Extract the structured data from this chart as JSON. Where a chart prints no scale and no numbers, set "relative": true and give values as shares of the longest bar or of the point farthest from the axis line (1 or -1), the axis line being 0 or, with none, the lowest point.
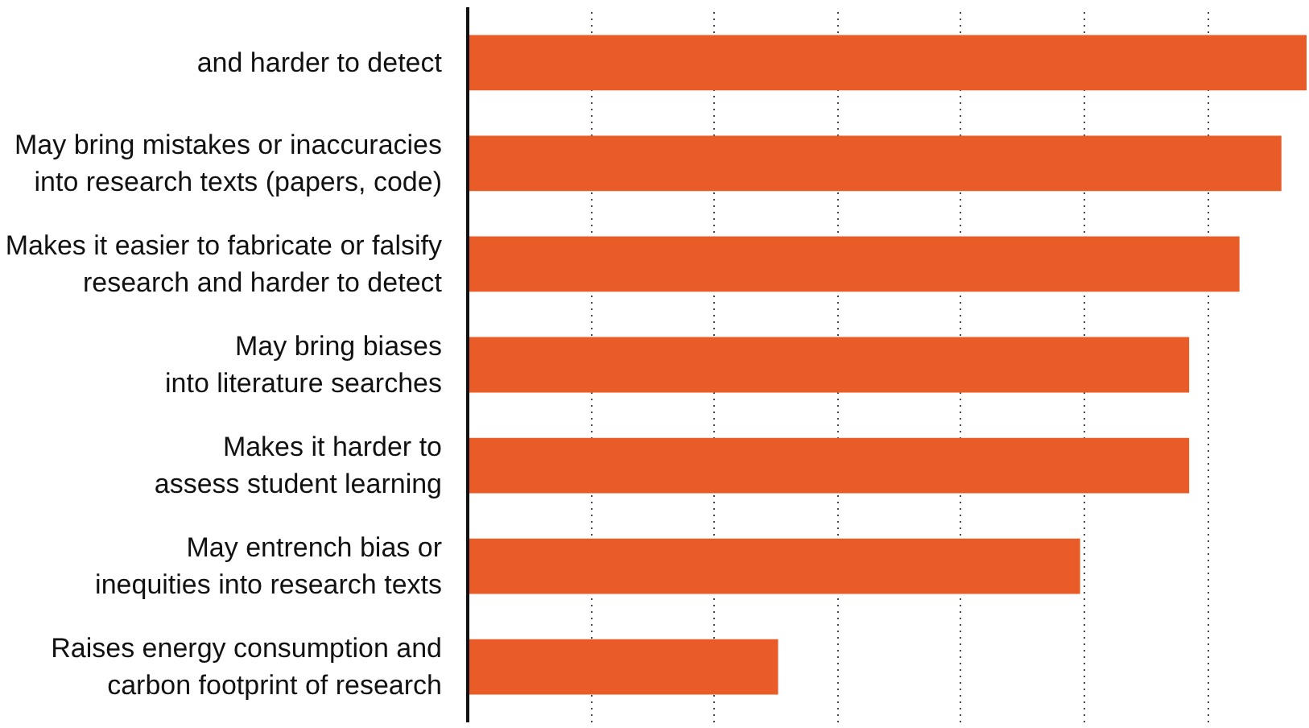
{
  "chart_data": {
    "type": "bar",
    "orientation": "horizontal",
    "relative": true,
    "grid": "x",
    "categories": [
      "and harder to detect",
      "May bring mistakes or inaccuracies\ninto research texts (papers, code)",
      "Makes it easier to fabricate or falsify\nresearch and harder to detect",
      "May bring biases\ninto literature searches",
      "Makes it harder to\nassess student learning",
      "May entrench bias or\ninequities into research texts",
      "Raises energy consumption and\ncarbon footprint of research"
    ],
    "values": [
      1,
      0.97,
      0.92,
      0.86,
      0.86,
      0.73,
      0.37
    ],
    "color": "#e95c27"
  }
}
